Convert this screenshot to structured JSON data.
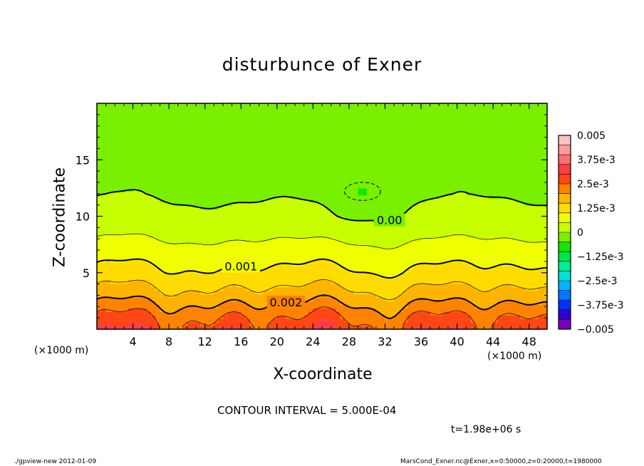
{
  "chart_data": {
    "type": "heatmap",
    "title": "disturbunce of Exner",
    "xlabel": "X-coordinate",
    "ylabel": "Z-coordinate",
    "x_unit_label": "(×1000 m)",
    "xlim": [
      0,
      50
    ],
    "ylim": [
      0,
      20
    ],
    "x_ticks": [
      4,
      8,
      12,
      16,
      20,
      24,
      28,
      32,
      36,
      40,
      44,
      48
    ],
    "x_tick_labels": [
      "4",
      "8",
      "12",
      "16",
      "20",
      "24",
      "28",
      "32",
      "36",
      "40",
      "44",
      "48"
    ],
    "y_ticks": [
      5,
      10,
      15
    ],
    "y_tick_labels": [
      "5",
      "10",
      "15"
    ],
    "colorbar": {
      "min": -0.005,
      "max": 0.005,
      "labels": [
        "0.005",
        "3.75e-3",
        "2.5e-3",
        "1.25e-3",
        "0",
        "−1.25e-3",
        "−2.5e-3",
        "−3.75e-3",
        "−0.005"
      ],
      "colors": [
        "#7a00b8",
        "#3200d2",
        "#0032ff",
        "#0078ff",
        "#00b4ff",
        "#00e1dc",
        "#00f096",
        "#00e646",
        "#14e600",
        "#78f000",
        "#c8ff00",
        "#f0ff00",
        "#ffdc00",
        "#ffb400",
        "#ff8200",
        "#ff4614",
        "#ff3c46",
        "#ff6e6e",
        "#ff9b9b",
        "#ffc3c3"
      ]
    },
    "contour_labels": [
      {
        "text": "0.00",
        "value": 0.0
      },
      {
        "text": "0.001",
        "value": 0.001
      },
      {
        "text": "0.002",
        "value": 0.002
      }
    ],
    "contour_interval_text": "CONTOUR INTERVAL = 5.000E-04",
    "time_text": "t=1.98e+06 s",
    "field_profile_z": [
      0,
      1,
      2,
      3,
      4,
      5,
      6,
      7,
      8,
      9,
      10,
      12,
      14,
      16,
      18,
      20
    ],
    "field_profile_value": [
      0.0028,
      0.0025,
      0.0021,
      0.0017,
      0.0014,
      0.0011,
      0.0009,
      0.00068,
      0.00048,
      0.0003,
      0.00012,
      -5e-05,
      -0.0001,
      -0.0001,
      -8e-05,
      -6e-05
    ]
  },
  "footer": {
    "left": "./gpview-new   2012-01-09",
    "right": "MarsCond_Exner.nc@Exner,x=0:50000,z=0:20000,t=1980000"
  }
}
